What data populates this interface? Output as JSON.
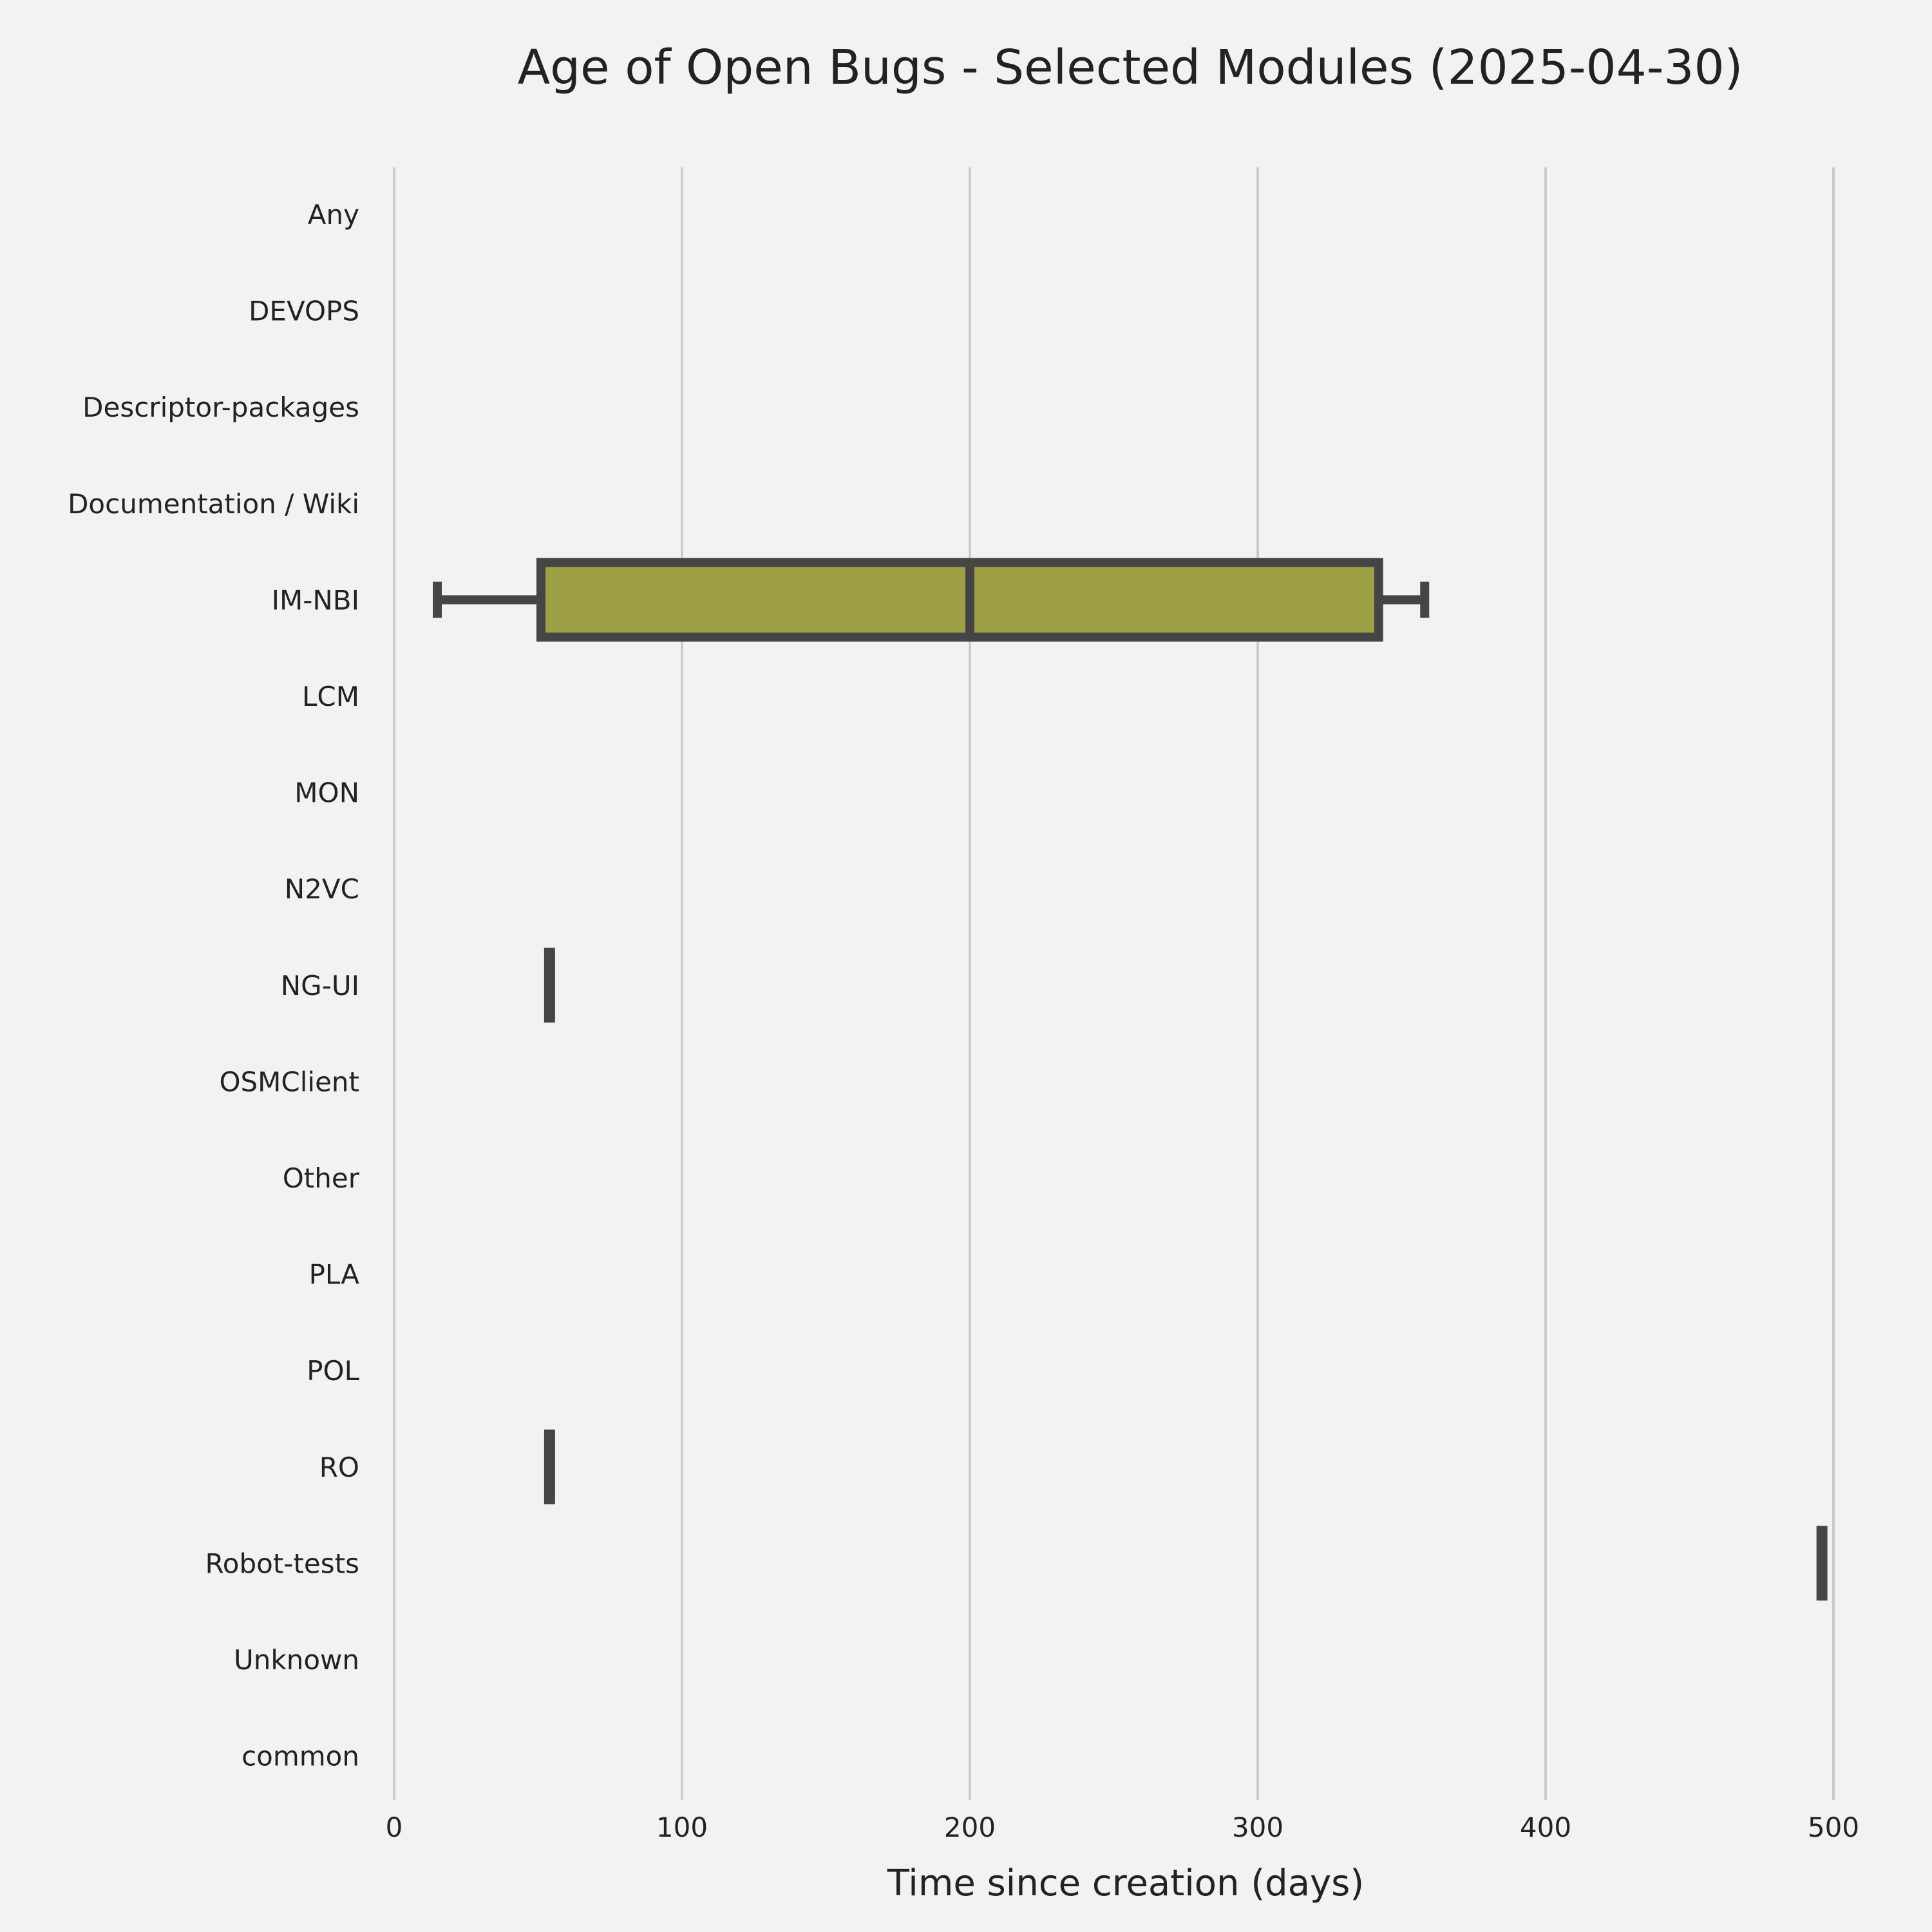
{
  "chart_data": {
    "type": "boxplot",
    "orientation": "horizontal",
    "title": "Age of Open Bugs - Selected Modules (2025-04-30)",
    "xlabel": "Time since creation (days)",
    "ylabel": "",
    "xlim": [
      -5,
      510
    ],
    "xticks": [
      0,
      100,
      200,
      300,
      400,
      500
    ],
    "xtick_labels": [
      "0",
      "100",
      "200",
      "300",
      "400",
      "500"
    ],
    "grid": "vertical",
    "colors": {
      "background": "#f2f2f2",
      "box_fill": "#9ea045",
      "box_edge": "#454545",
      "grid": "#cbcbcb",
      "text": "#222222"
    },
    "categories": [
      "Any",
      "DEVOPS",
      "Descriptor-packages",
      "Documentation / Wiki",
      "IM-NBI",
      "LCM",
      "MON",
      "N2VC",
      "NG-UI",
      "OSMClient",
      "Other",
      "PLA",
      "POL",
      "RO",
      "Robot-tests",
      "Unknown",
      "common"
    ],
    "boxes": [
      {
        "category": "IM-NBI",
        "whisker_low": 15,
        "q1": 51,
        "median": 200,
        "q3": 342,
        "whisker_high": 358
      },
      {
        "category": "NG-UI",
        "whisker_low": 54,
        "q1": 54,
        "median": 54,
        "q3": 54,
        "whisker_high": 54
      },
      {
        "category": "RO",
        "whisker_low": 54,
        "q1": 54,
        "median": 54,
        "q3": 54,
        "whisker_high": 54
      },
      {
        "category": "Robot-tests",
        "whisker_low": 496,
        "q1": 496,
        "median": 496,
        "q3": 496,
        "whisker_high": 496
      }
    ]
  }
}
